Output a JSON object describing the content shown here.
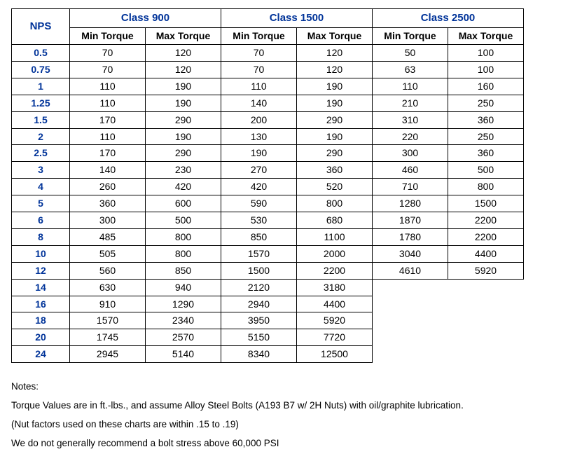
{
  "type": "table",
  "colors": {
    "header_text": "#003399",
    "nps_text": "#003399",
    "body_text": "#000000",
    "border": "#000000",
    "background": "#ffffff"
  },
  "fonts": {
    "family": "Arial",
    "header_size_pt": 11,
    "body_size_pt": 10.5,
    "notes_size_pt": 10
  },
  "headers": {
    "nps": "NPS",
    "class900": "Class 900",
    "class1500": "Class 1500",
    "class2500": "Class 2500",
    "min": "Min Torque",
    "max": "Max Torque"
  },
  "rows": [
    {
      "nps": "0.5",
      "c900min": "70",
      "c900max": "120",
      "c1500min": "70",
      "c1500max": "120",
      "c2500min": "50",
      "c2500max": "100"
    },
    {
      "nps": "0.75",
      "c900min": "70",
      "c900max": "120",
      "c1500min": "70",
      "c1500max": "120",
      "c2500min": "63",
      "c2500max": "100"
    },
    {
      "nps": "1",
      "c900min": "110",
      "c900max": "190",
      "c1500min": "110",
      "c1500max": "190",
      "c2500min": "110",
      "c2500max": "160"
    },
    {
      "nps": "1.25",
      "c900min": "110",
      "c900max": "190",
      "c1500min": "140",
      "c1500max": "190",
      "c2500min": "210",
      "c2500max": "250"
    },
    {
      "nps": "1.5",
      "c900min": "170",
      "c900max": "290",
      "c1500min": "200",
      "c1500max": "290",
      "c2500min": "310",
      "c2500max": "360"
    },
    {
      "nps": "2",
      "c900min": "110",
      "c900max": "190",
      "c1500min": "130",
      "c1500max": "190",
      "c2500min": "220",
      "c2500max": "250"
    },
    {
      "nps": "2.5",
      "c900min": "170",
      "c900max": "290",
      "c1500min": "190",
      "c1500max": "290",
      "c2500min": "300",
      "c2500max": "360"
    },
    {
      "nps": "3",
      "c900min": "140",
      "c900max": "230",
      "c1500min": "270",
      "c1500max": "360",
      "c2500min": "460",
      "c2500max": "500"
    },
    {
      "nps": "4",
      "c900min": "260",
      "c900max": "420",
      "c1500min": "420",
      "c1500max": "520",
      "c2500min": "710",
      "c2500max": "800"
    },
    {
      "nps": "5",
      "c900min": "360",
      "c900max": "600",
      "c1500min": "590",
      "c1500max": "800",
      "c2500min": "1280",
      "c2500max": "1500"
    },
    {
      "nps": "6",
      "c900min": "300",
      "c900max": "500",
      "c1500min": "530",
      "c1500max": "680",
      "c2500min": "1870",
      "c2500max": "2200"
    },
    {
      "nps": "8",
      "c900min": "485",
      "c900max": "800",
      "c1500min": "850",
      "c1500max": "1100",
      "c2500min": "1780",
      "c2500max": "2200"
    },
    {
      "nps": "10",
      "c900min": "505",
      "c900max": "800",
      "c1500min": "1570",
      "c1500max": "2000",
      "c2500min": "3040",
      "c2500max": "4400"
    },
    {
      "nps": "12",
      "c900min": "560",
      "c900max": "850",
      "c1500min": "1500",
      "c1500max": "2200",
      "c2500min": "4610",
      "c2500max": "5920"
    },
    {
      "nps": "14",
      "c900min": "630",
      "c900max": "940",
      "c1500min": "2120",
      "c1500max": "3180"
    },
    {
      "nps": "16",
      "c900min": "910",
      "c900max": "1290",
      "c1500min": "2940",
      "c1500max": "4400"
    },
    {
      "nps": "18",
      "c900min": "1570",
      "c900max": "2340",
      "c1500min": "3950",
      "c1500max": "5920"
    },
    {
      "nps": "20",
      "c900min": "1745",
      "c900max": "2570",
      "c1500min": "5150",
      "c1500max": "7720"
    },
    {
      "nps": "24",
      "c900min": "2945",
      "c900max": "5140",
      "c1500min": "8340",
      "c1500max": "12500"
    }
  ],
  "notes": {
    "title": "Notes:",
    "line1": "Torque Values are in ft.-lbs., and assume Alloy Steel Bolts (A193 B7 w/ 2H Nuts) with oil/graphite lubrication.",
    "line2": "(Nut factors used on these charts are within .15 to .19)",
    "line3": "We do not generally recommend a bolt stress above 60,000 PSI"
  }
}
